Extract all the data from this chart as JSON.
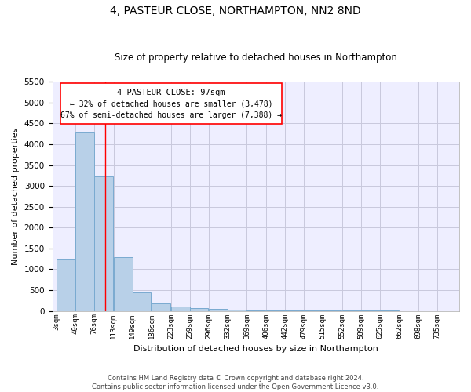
{
  "title": "4, PASTEUR CLOSE, NORTHAMPTON, NN2 8ND",
  "subtitle": "Size of property relative to detached houses in Northampton",
  "xlabel": "Distribution of detached houses by size in Northampton",
  "ylabel": "Number of detached properties",
  "bins": [
    3,
    40,
    76,
    113,
    149,
    186,
    223,
    259,
    296,
    332,
    369,
    406,
    442,
    479,
    515,
    552,
    589,
    625,
    662,
    698,
    735
  ],
  "bin_labels": [
    "3sqm",
    "40sqm",
    "76sqm",
    "113sqm",
    "149sqm",
    "186sqm",
    "223sqm",
    "259sqm",
    "296sqm",
    "332sqm",
    "369sqm",
    "406sqm",
    "442sqm",
    "479sqm",
    "515sqm",
    "552sqm",
    "589sqm",
    "625sqm",
    "662sqm",
    "698sqm",
    "735sqm"
  ],
  "values": [
    1250,
    4280,
    3230,
    1290,
    450,
    175,
    100,
    75,
    50,
    30,
    20,
    15,
    10,
    8,
    6,
    5,
    4,
    3,
    2,
    2,
    2
  ],
  "bar_color": "#b8d0e8",
  "bar_edge_color": "#7aaad0",
  "grid_color": "#c8c8dc",
  "background_color": "#eeeeff",
  "red_line_x": 97,
  "ylim": [
    0,
    5500
  ],
  "yticks": [
    0,
    500,
    1000,
    1500,
    2000,
    2500,
    3000,
    3500,
    4000,
    4500,
    5000,
    5500
  ],
  "annotation_title": "4 PASTEUR CLOSE: 97sqm",
  "annotation_line1": "← 32% of detached houses are smaller (3,478)",
  "annotation_line2": "67% of semi-detached houses are larger (7,388) →",
  "footer_line1": "Contains HM Land Registry data © Crown copyright and database right 2024.",
  "footer_line2": "Contains public sector information licensed under the Open Government Licence v3.0.",
  "title_fontsize": 10,
  "subtitle_fontsize": 8.5
}
